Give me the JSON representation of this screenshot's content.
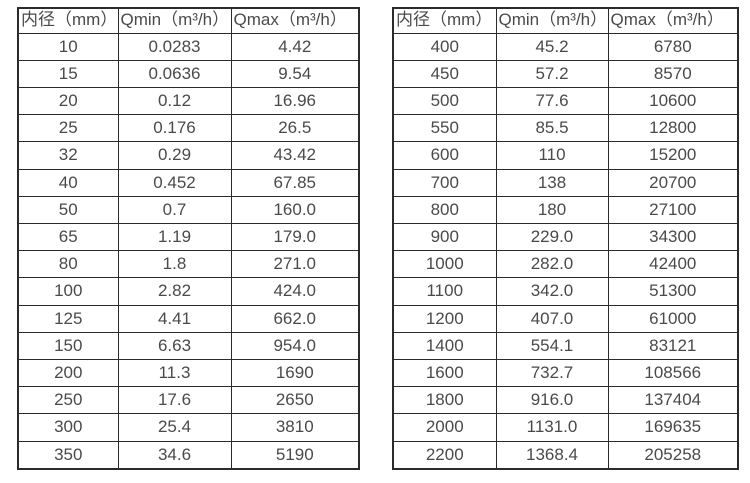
{
  "headers": [
    "内径（mm）",
    "Qmin（m³/h）",
    "Qmax（m³/h）"
  ],
  "tables": [
    {
      "name": "small-diameters",
      "rows": [
        [
          "10",
          "0.0283",
          "4.42"
        ],
        [
          "15",
          "0.0636",
          "9.54"
        ],
        [
          "20",
          "0.12",
          "16.96"
        ],
        [
          "25",
          "0.176",
          "26.5"
        ],
        [
          "32",
          "0.29",
          "43.42"
        ],
        [
          "40",
          "0.452",
          "67.85"
        ],
        [
          "50",
          "0.7",
          "160.0"
        ],
        [
          "65",
          "1.19",
          "179.0"
        ],
        [
          "80",
          "1.8",
          "271.0"
        ],
        [
          "100",
          "2.82",
          "424.0"
        ],
        [
          "125",
          "4.41",
          "662.0"
        ],
        [
          "150",
          "6.63",
          "954.0"
        ],
        [
          "200",
          "11.3",
          "1690"
        ],
        [
          "250",
          "17.6",
          "2650"
        ],
        [
          "300",
          "25.4",
          "3810"
        ],
        [
          "350",
          "34.6",
          "5190"
        ]
      ]
    },
    {
      "name": "large-diameters",
      "rows": [
        [
          "400",
          "45.2",
          "6780"
        ],
        [
          "450",
          "57.2",
          "8570"
        ],
        [
          "500",
          "77.6",
          "10600"
        ],
        [
          "550",
          "85.5",
          "12800"
        ],
        [
          "600",
          "110",
          "15200"
        ],
        [
          "700",
          "138",
          "20700"
        ],
        [
          "800",
          "180",
          "27100"
        ],
        [
          "900",
          "229.0",
          "34300"
        ],
        [
          "1000",
          "282.0",
          "42400"
        ],
        [
          "1100",
          "342.0",
          "51300"
        ],
        [
          "1200",
          "407.0",
          "61000"
        ],
        [
          "1400",
          "554.1",
          "83121"
        ],
        [
          "1600",
          "732.7",
          "108566"
        ],
        [
          "1800",
          "916.0",
          "137404"
        ],
        [
          "2000",
          "1131.0",
          "169635"
        ],
        [
          "2200",
          "1368.4",
          "205258"
        ]
      ]
    }
  ],
  "colors": {
    "background": "#ffffff",
    "border": "#2b2b2b",
    "text": "#4a4a4a"
  }
}
